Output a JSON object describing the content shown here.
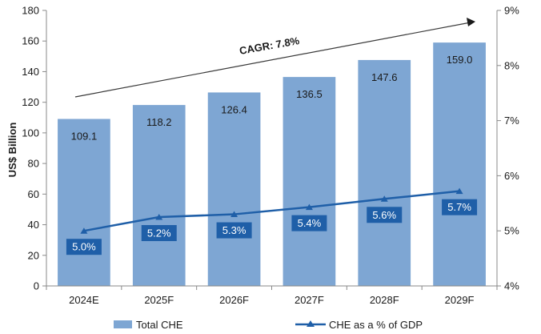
{
  "chart_data": {
    "type": "bar",
    "categories": [
      "2024E",
      "2025F",
      "2026F",
      "2027F",
      "2028F",
      "2029F"
    ],
    "series": [
      {
        "name": "Total CHE",
        "type": "bar",
        "axis": "left",
        "values": [
          109.1,
          118.2,
          126.4,
          136.5,
          147.6,
          159.0
        ],
        "labels": [
          "109.1",
          "118.2",
          "126.4",
          "136.5",
          "147.6",
          "159.0"
        ],
        "color": "#7ea6d3"
      },
      {
        "name": "CHE as a % of GDP",
        "type": "line",
        "axis": "right",
        "values": [
          5.0,
          5.25,
          5.3,
          5.43,
          5.58,
          5.72
        ],
        "labels": [
          "5.0%",
          "5.2%",
          "5.3%",
          "5.4%",
          "5.6%",
          "5.7%"
        ],
        "color": "#1f5fa8"
      }
    ],
    "ylabel": "US$ Billion",
    "ylim": [
      0,
      180
    ],
    "yticks": [
      "0",
      "20",
      "40",
      "60",
      "80",
      "100",
      "120",
      "140",
      "160",
      "180"
    ],
    "y2lim": [
      4,
      9
    ],
    "y2ticks": [
      "4%",
      "5%",
      "6%",
      "7%",
      "8%",
      "9%"
    ],
    "annotation": "CAGR: 7.8%",
    "legend_position": "bottom",
    "grid": false
  }
}
